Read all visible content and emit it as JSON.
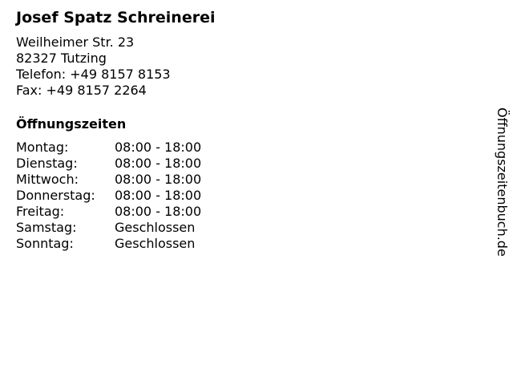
{
  "business": {
    "name": "Josef Spatz Schreinerei",
    "street": "Weilheimer Str. 23",
    "city": "82327 Tutzing",
    "phone": "Telefon: +49 8157 8153",
    "fax": "Fax: +49 8157 2264"
  },
  "hours": {
    "heading": "Öffnungszeiten",
    "rows": [
      {
        "day": "Montag:",
        "time": "08:00 - 18:00"
      },
      {
        "day": "Dienstag:",
        "time": "08:00 - 18:00"
      },
      {
        "day": "Mittwoch:",
        "time": "08:00 - 18:00"
      },
      {
        "day": "Donnerstag:",
        "time": "08:00 - 18:00"
      },
      {
        "day": "Freitag:",
        "time": "08:00 - 18:00"
      },
      {
        "day": "Samstag:",
        "time": "Geschlossen"
      },
      {
        "day": "Sonntag:",
        "time": "Geschlossen"
      }
    ]
  },
  "watermark": "Öffnungszeitenbuch.de"
}
